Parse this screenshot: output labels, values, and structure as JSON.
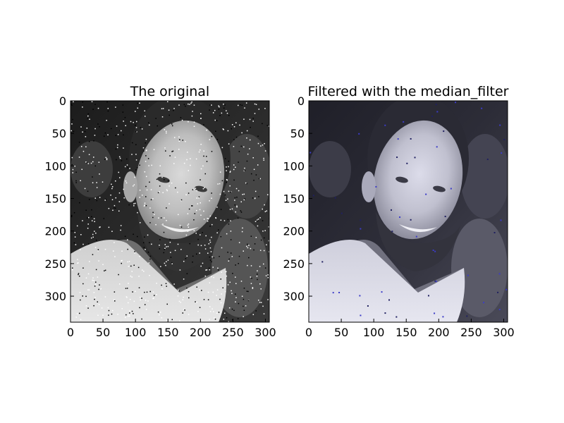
{
  "figure": {
    "panels": [
      {
        "title": "The original",
        "image": {
          "subject": "grayscale photo of a smiling bearded man in a light sweater, dark background",
          "noise": "salt-and-pepper",
          "tint": "gray"
        },
        "x_ticks": [
          "0",
          "50",
          "100",
          "150",
          "200",
          "250",
          "300"
        ],
        "y_ticks": [
          "0",
          "50",
          "100",
          "150",
          "200",
          "250",
          "300"
        ],
        "x_range": [
          0,
          306
        ],
        "y_range": [
          340,
          0
        ]
      },
      {
        "title": "Filtered with the median_filter",
        "image": {
          "subject": "same photo after median filtering, smoothed",
          "noise": "none",
          "tint": "bluish-gray"
        },
        "x_ticks": [
          "0",
          "50",
          "100",
          "150",
          "200",
          "250",
          "300"
        ],
        "y_ticks": [
          "0",
          "50",
          "100",
          "150",
          "200",
          "250",
          "300"
        ],
        "x_range": [
          0,
          306
        ],
        "y_range": [
          340,
          0
        ]
      }
    ]
  }
}
